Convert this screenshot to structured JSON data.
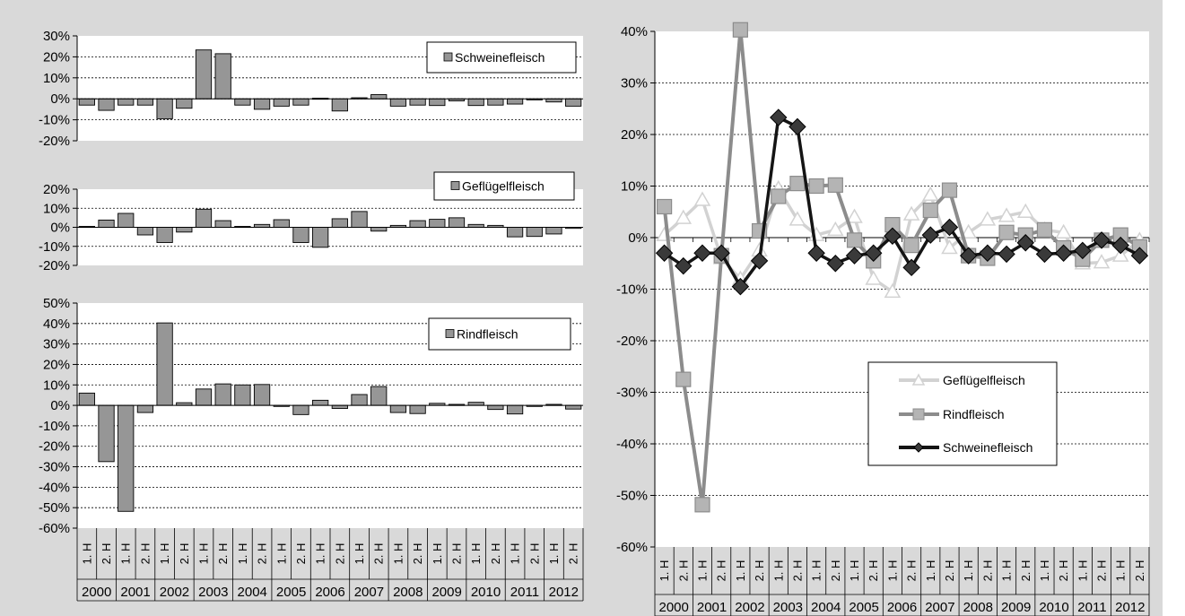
{
  "colors": {
    "background": "#d9d9d9",
    "plot_area": "#ffffff",
    "bar_fill": "#969696",
    "pork_line": "#141414",
    "beef_line": "#8c8c8c",
    "beef_marker": "#b4b4b4",
    "poultry_line": "#d2d2d2"
  },
  "chart_data": [
    {
      "type": "bar",
      "ylim": [
        -20,
        30
      ],
      "yticks": [
        "30%",
        "20%",
        "10%",
        "0%",
        "-10%",
        "-20%"
      ],
      "legend": {
        "position": "top-right"
      },
      "series": [
        {
          "name": "Schweinefleisch",
          "values": [
            -3,
            -5.5,
            -3,
            -3,
            -9.5,
            -4.5,
            23.3,
            21.5,
            -3,
            -5,
            -3.5,
            -3,
            0.3,
            -5.8,
            0.5,
            2,
            -3.5,
            -3,
            -3.2,
            -1,
            -3.2,
            -3,
            -2.5,
            -0.5,
            -1.5,
            -3.5
          ]
        }
      ]
    },
    {
      "type": "bar",
      "ylim": [
        -20,
        20
      ],
      "yticks": [
        "20%",
        "10%",
        "0%",
        "-10%",
        "-20%"
      ],
      "legend": {
        "position": "top-right"
      },
      "series": [
        {
          "name": "Geflügelfleisch",
          "values": [
            0.5,
            3.8,
            7.3,
            -4,
            -8,
            -2.5,
            9.5,
            3.5,
            0.5,
            1.5,
            4,
            -8,
            -10.5,
            4.5,
            8.3,
            -2,
            1,
            3.5,
            4.2,
            5,
            1.5,
            1,
            -5,
            -4.8,
            -3.5,
            -0.5
          ]
        }
      ]
    },
    {
      "type": "bar",
      "ylim": [
        -60,
        50
      ],
      "yticks": [
        "50%",
        "40%",
        "30%",
        "20%",
        "10%",
        "0%",
        "-10%",
        "-20%",
        "-30%",
        "-40%",
        "-50%",
        "-60%"
      ],
      "legend": {
        "position": "top-right"
      },
      "categories_half": [
        "1. H",
        "2. H"
      ],
      "categories_year": [
        "2000",
        "2001",
        "2002",
        "2003",
        "2004",
        "2005",
        "2006",
        "2007",
        "2008",
        "2009",
        "2010",
        "2011",
        "2012"
      ],
      "series": [
        {
          "name": "Rindfleisch",
          "values": [
            6,
            -27.5,
            -51.8,
            -3.5,
            40.3,
            1.3,
            8,
            10.5,
            10,
            10.2,
            -0.5,
            -4.5,
            2.5,
            -1.5,
            5.3,
            9.2,
            -3.5,
            -4,
            1,
            0.5,
            1.5,
            -2,
            -4.2,
            -0.5,
            0.5,
            -1.8
          ]
        }
      ]
    },
    {
      "type": "line",
      "ylim": [
        -60,
        40
      ],
      "yticks": [
        "40%",
        "30%",
        "20%",
        "10%",
        "0%",
        "-10%",
        "-20%",
        "-30%",
        "-40%",
        "-50%",
        "-60%"
      ],
      "legend": {
        "position": "bottom-right"
      },
      "categories_half": [
        "1. H",
        "2. H"
      ],
      "categories_year": [
        "2000",
        "2001",
        "2002",
        "2003",
        "2004",
        "2005",
        "2006",
        "2007",
        "2008",
        "2009",
        "2010",
        "2011",
        "2012"
      ],
      "series": [
        {
          "name": "Geflügelfleisch",
          "values": [
            0.5,
            3.8,
            7.3,
            -4,
            -8,
            -2.5,
            9.5,
            3.5,
            0.5,
            1.5,
            4,
            -8,
            -10.5,
            4.5,
            8.3,
            -2,
            1,
            3.5,
            4.2,
            5,
            1.5,
            1,
            -5,
            -4.8,
            -3.5,
            -0.5
          ]
        },
        {
          "name": "Rindfleisch",
          "values": [
            6,
            -27.5,
            -51.8,
            -3.5,
            40.3,
            1.3,
            8,
            10.5,
            10,
            10.2,
            -0.5,
            -4.5,
            2.5,
            -1.5,
            5.3,
            9.2,
            -3.5,
            -4,
            1,
            0.5,
            1.5,
            -2,
            -4.2,
            -0.5,
            0.5,
            -1.8
          ]
        },
        {
          "name": "Schweinefleisch",
          "values": [
            -3,
            -5.5,
            -3,
            -3,
            -9.5,
            -4.5,
            23.3,
            21.5,
            -3,
            -5,
            -3.5,
            -3,
            0.3,
            -5.8,
            0.5,
            2,
            -3.5,
            -3,
            -3.2,
            -1,
            -3.2,
            -3,
            -2.5,
            -0.5,
            -1.5,
            -3.5
          ]
        }
      ]
    }
  ]
}
